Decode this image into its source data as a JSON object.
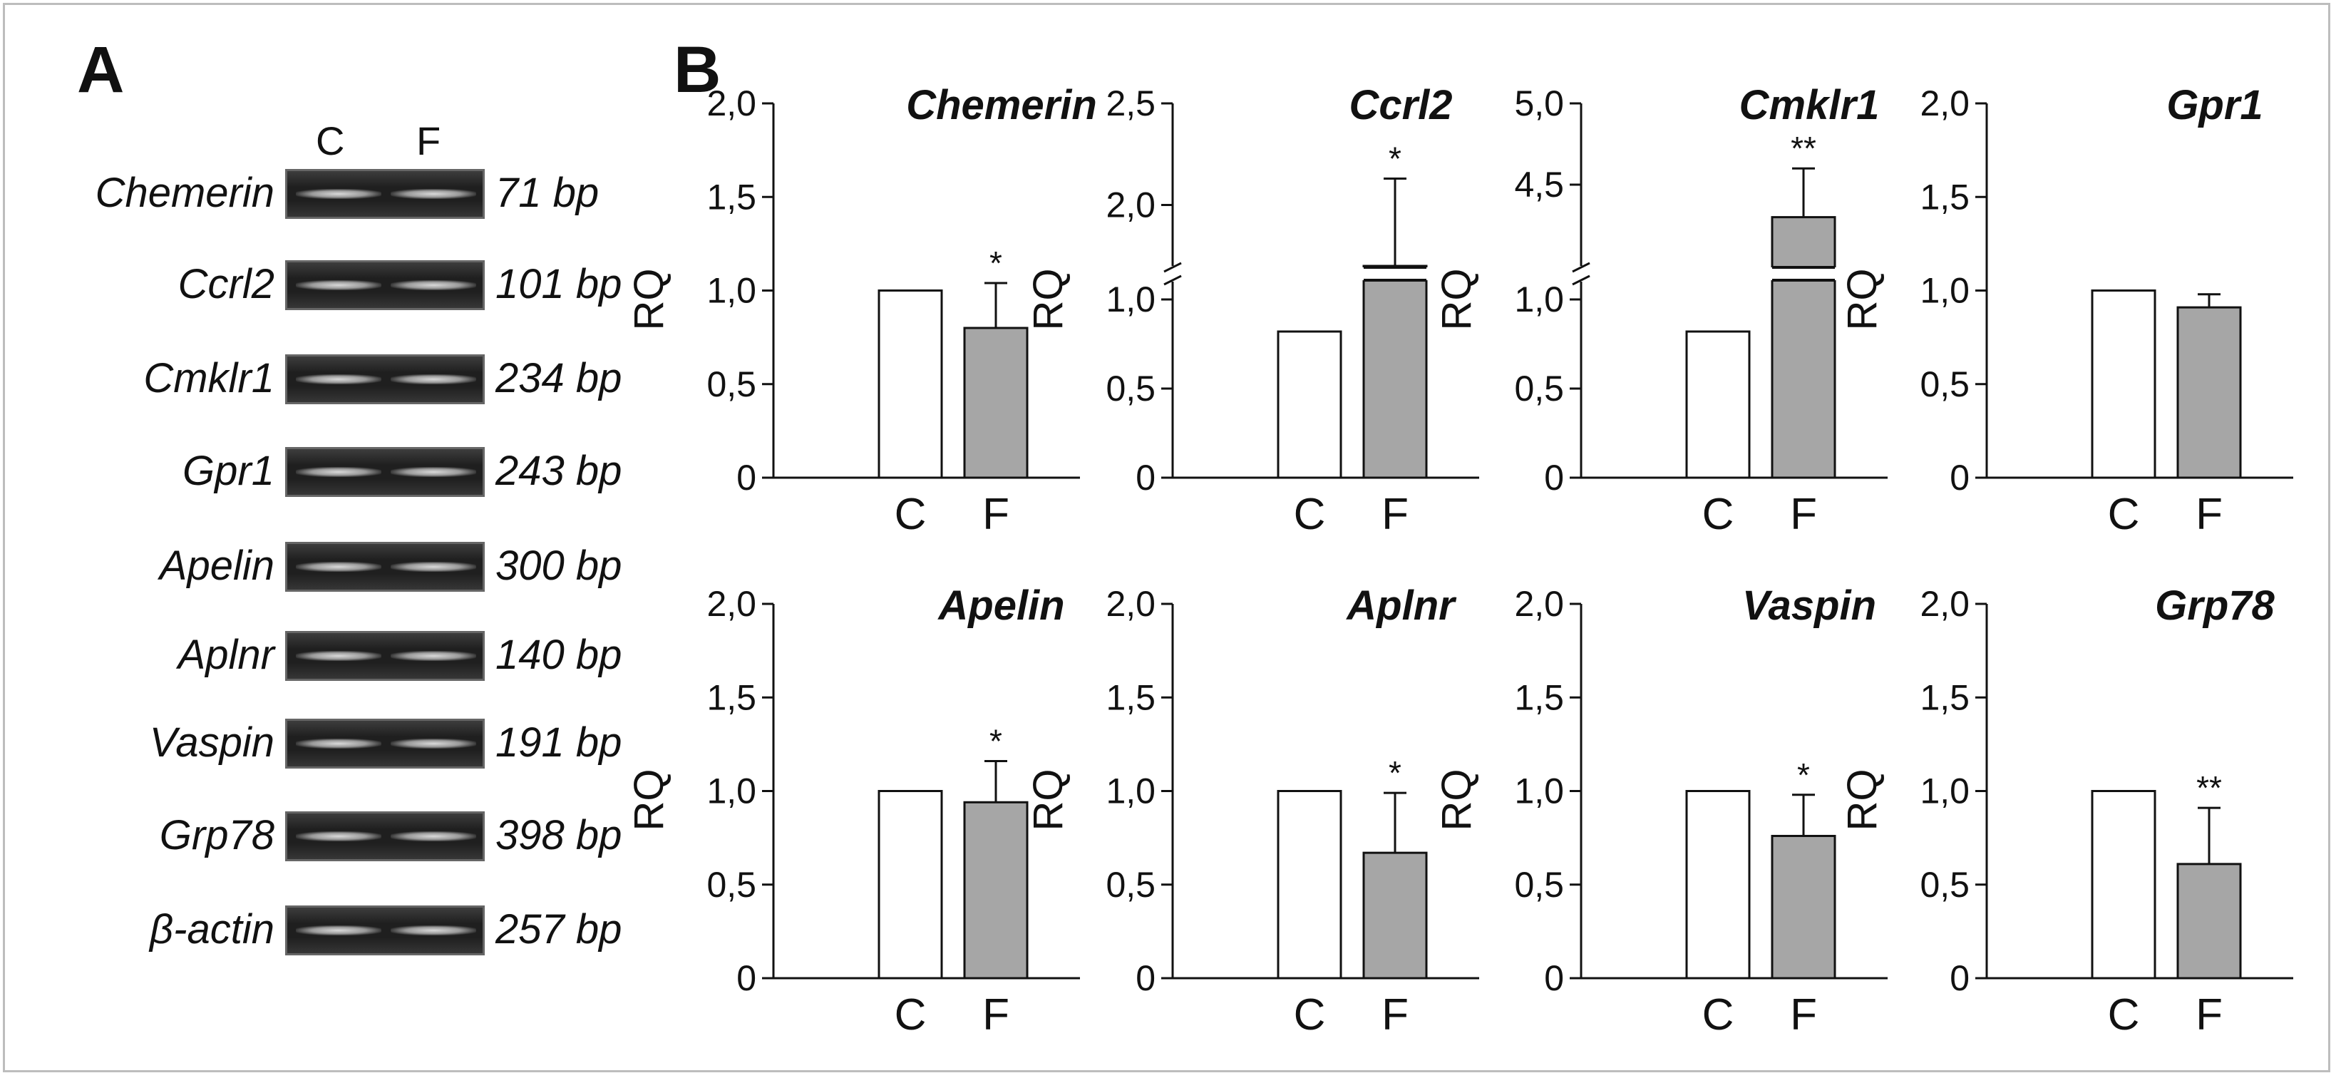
{
  "panels": {
    "a_label": "A",
    "b_label": "B"
  },
  "gel": {
    "lanes": [
      "C",
      "F"
    ],
    "rows": [
      {
        "gene": "Chemerin",
        "size": "71 bp"
      },
      {
        "gene": "Ccrl2",
        "size": "101 bp"
      },
      {
        "gene": "Cmklr1",
        "size": "234 bp"
      },
      {
        "gene": "Gpr1",
        "size": "243 bp"
      },
      {
        "gene": "Apelin",
        "size": "300 bp"
      },
      {
        "gene": "Aplnr",
        "size": "140 bp"
      },
      {
        "gene": "Vaspin",
        "size": "191 bp"
      },
      {
        "gene": "Grp78",
        "size": "398 bp"
      },
      {
        "gene": "β-actin",
        "size": "257 bp"
      }
    ]
  },
  "chart_data": [
    {
      "type": "bar",
      "title": "Chemerin",
      "ylabel": "RQ",
      "categories": [
        "C",
        "F"
      ],
      "values": [
        1.0,
        0.8
      ],
      "errors": [
        0,
        0.24
      ],
      "significance": [
        "",
        "*"
      ],
      "ylim": [
        0,
        2.0
      ],
      "yticks": [
        "0",
        "0,5",
        "1,0",
        "1,5",
        "2,0"
      ],
      "colors": [
        "#ffffff",
        "#a6a6a6"
      ]
    },
    {
      "type": "bar",
      "title": "Ccrl2",
      "ylabel": "RQ",
      "categories": [
        "C",
        "F"
      ],
      "values": [
        0.82,
        1.7
      ],
      "errors": [
        0,
        0.43
      ],
      "significance": [
        "",
        "*"
      ],
      "ylim": [
        0,
        2.5
      ],
      "axis_break": [
        1.1,
        1.7
      ],
      "yticks": [
        "0",
        "0,5",
        "1,0",
        "2,0",
        "2,5"
      ],
      "colors": [
        "#ffffff",
        "#a6a6a6"
      ]
    },
    {
      "type": "bar",
      "title": "Cmklr1",
      "ylabel": "RQ",
      "categories": [
        "C",
        "F"
      ],
      "values": [
        0.82,
        4.3
      ],
      "errors": [
        0,
        0.3
      ],
      "significance": [
        "",
        "**"
      ],
      "ylim": [
        0,
        5.0
      ],
      "axis_break": [
        1.1,
        4.0
      ],
      "yticks": [
        "0",
        "0,5",
        "1,0",
        "4,5",
        "5,0"
      ],
      "colors": [
        "#ffffff",
        "#a6a6a6"
      ]
    },
    {
      "type": "bar",
      "title": "Gpr1",
      "ylabel": "RQ",
      "categories": [
        "C",
        "F"
      ],
      "values": [
        1.0,
        0.91
      ],
      "errors": [
        0,
        0.07
      ],
      "significance": [
        "",
        ""
      ],
      "ylim": [
        0,
        2.0
      ],
      "yticks": [
        "0",
        "0,5",
        "1,0",
        "1,5",
        "2,0"
      ],
      "colors": [
        "#ffffff",
        "#a6a6a6"
      ]
    },
    {
      "type": "bar",
      "title": "Apelin",
      "ylabel": "RQ",
      "categories": [
        "C",
        "F"
      ],
      "values": [
        1.0,
        0.94
      ],
      "errors": [
        0,
        0.22
      ],
      "significance": [
        "",
        "*"
      ],
      "ylim": [
        0,
        2.0
      ],
      "yticks": [
        "0",
        "0,5",
        "1,0",
        "1,5",
        "2,0"
      ],
      "colors": [
        "#ffffff",
        "#a6a6a6"
      ]
    },
    {
      "type": "bar",
      "title": "Aplnr",
      "ylabel": "RQ",
      "categories": [
        "C",
        "F"
      ],
      "values": [
        1.0,
        0.67
      ],
      "errors": [
        0,
        0.32
      ],
      "significance": [
        "",
        "*"
      ],
      "ylim": [
        0,
        2.0
      ],
      "yticks": [
        "0",
        "0,5",
        "1,0",
        "1,5",
        "2,0"
      ],
      "colors": [
        "#ffffff",
        "#a6a6a6"
      ]
    },
    {
      "type": "bar",
      "title": "Vaspin",
      "ylabel": "RQ",
      "categories": [
        "C",
        "F"
      ],
      "values": [
        1.0,
        0.76
      ],
      "errors": [
        0,
        0.22
      ],
      "significance": [
        "",
        "*"
      ],
      "ylim": [
        0,
        2.0
      ],
      "yticks": [
        "0",
        "0,5",
        "1,0",
        "1,5",
        "2,0"
      ],
      "colors": [
        "#ffffff",
        "#a6a6a6"
      ]
    },
    {
      "type": "bar",
      "title": "Grp78",
      "ylabel": "RQ",
      "categories": [
        "C",
        "F"
      ],
      "values": [
        1.0,
        0.61
      ],
      "errors": [
        0,
        0.3
      ],
      "significance": [
        "",
        "**"
      ],
      "ylim": [
        0,
        2.0
      ],
      "yticks": [
        "0",
        "0,5",
        "1,0",
        "1,5",
        "2,0"
      ],
      "colors": [
        "#ffffff",
        "#a6a6a6"
      ]
    }
  ]
}
